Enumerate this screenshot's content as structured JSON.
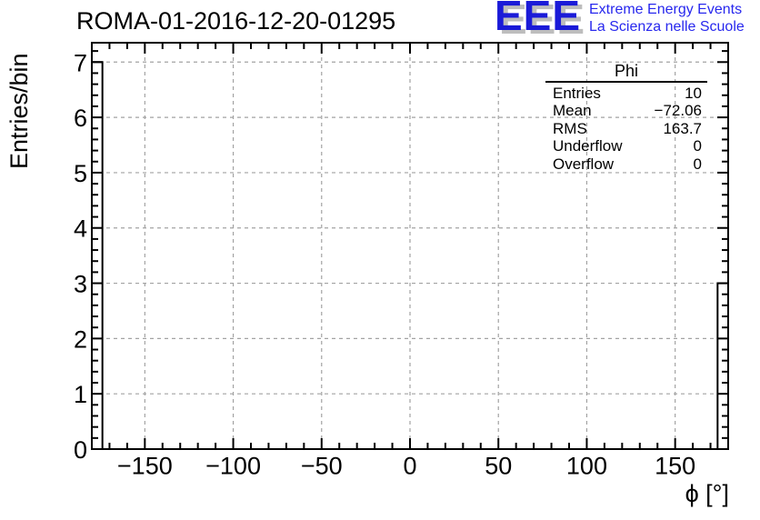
{
  "header": {
    "title": "ROMA-01-2016-12-20-01295"
  },
  "logo": {
    "acronym": "EEE",
    "tagline_line1": "Extreme Energy Events",
    "tagline_line2": "La Scienza nelle Scuole",
    "acronym_color": "#1a1ad8",
    "tagline_color": "#2828ee",
    "shadow_color": "#bdbdbd"
  },
  "stats_box": {
    "title": "Phi",
    "rows": [
      {
        "label": "Entries",
        "value": "10"
      },
      {
        "label": "Mean",
        "value": "−72.06"
      },
      {
        "label": "RMS",
        "value": "163.7"
      },
      {
        "label": "Underflow",
        "value": "0"
      },
      {
        "label": "Overflow",
        "value": "0"
      }
    ]
  },
  "chart_data": {
    "type": "bar",
    "title": "ROMA-01-2016-12-20-01295",
    "xlabel": "ϕ [°]",
    "ylabel": "Entries/bin",
    "xlim": [
      -180,
      180
    ],
    "ylim": [
      0,
      7.35
    ],
    "x_major_ticks": [
      -150,
      -100,
      -50,
      0,
      50,
      100,
      150
    ],
    "x_minor_step": 10,
    "y_major_ticks": [
      0,
      1,
      2,
      3,
      4,
      5,
      6,
      7
    ],
    "y_minor_step": 0.2,
    "grid": true,
    "grid_color": "#a2a2a2",
    "axis_color": "#000000",
    "bar_outline_color": "#000000",
    "bin_width_deg": 6,
    "bars": [
      {
        "x0": -180,
        "x1": -174,
        "count": 7
      },
      {
        "x0": 174,
        "x1": 180,
        "count": 3
      }
    ]
  }
}
